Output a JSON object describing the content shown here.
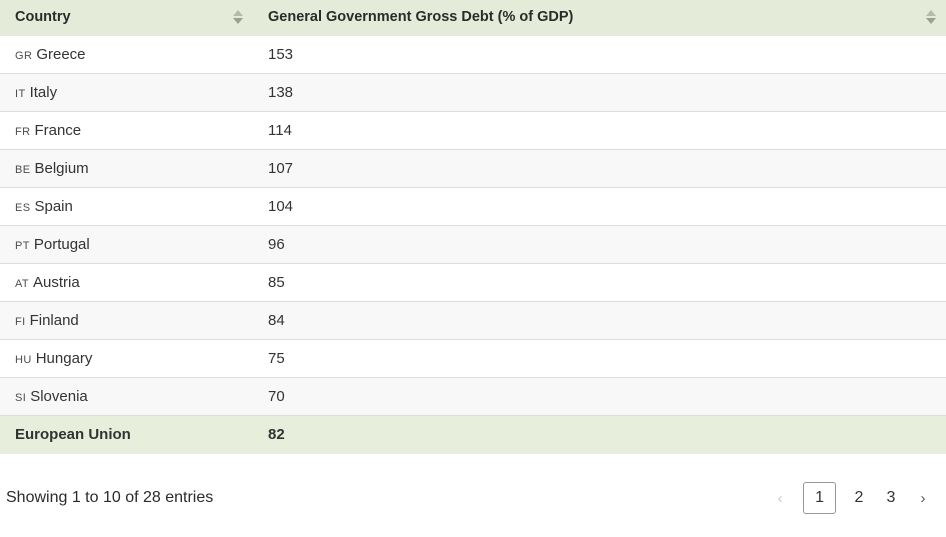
{
  "table": {
    "header": {
      "country_label": "Country",
      "value_label": "General Government Gross Debt (% of GDP)"
    },
    "rows": [
      {
        "code": "GR",
        "country": "Greece",
        "value": "153"
      },
      {
        "code": "IT",
        "country": "Italy",
        "value": "138"
      },
      {
        "code": "FR",
        "country": "France",
        "value": "114"
      },
      {
        "code": "BE",
        "country": "Belgium",
        "value": "107"
      },
      {
        "code": "ES",
        "country": "Spain",
        "value": "104"
      },
      {
        "code": "PT",
        "country": "Portugal",
        "value": "96"
      },
      {
        "code": "AT",
        "country": "Austria",
        "value": "85"
      },
      {
        "code": "FI",
        "country": "Finland",
        "value": "84"
      },
      {
        "code": "HU",
        "country": "Hungary",
        "value": "75"
      },
      {
        "code": "SI",
        "country": "Slovenia",
        "value": "70"
      }
    ],
    "summary_row": {
      "country": "European Union",
      "value": "82"
    }
  },
  "pagination": {
    "info": "Showing 1 to 10 of 28 entries",
    "previous": "‹",
    "next": "›",
    "pages": [
      "1",
      "2",
      "3"
    ],
    "current_page": "1"
  },
  "colors": {
    "header_bg": "#e4ebd8",
    "summary_bg": "#e7eedb",
    "stripe_bg": "#f8f8f8",
    "row_border": "#dddddd",
    "text": "#333333"
  },
  "icons": {
    "sort": "sort-arrows"
  },
  "chart_data": {
    "type": "table",
    "title": "General Government Gross Debt (% of GDP)",
    "columns": [
      "Country",
      "General Government Gross Debt (% of GDP)"
    ],
    "categories": [
      "Greece",
      "Italy",
      "France",
      "Belgium",
      "Spain",
      "Portugal",
      "Austria",
      "Finland",
      "Hungary",
      "Slovenia",
      "European Union"
    ],
    "values": [
      153,
      138,
      114,
      107,
      104,
      96,
      85,
      84,
      75,
      70,
      82
    ],
    "sort_order": "value descending",
    "entries_shown": "1 to 10 of 28",
    "pages_visible": [
      1,
      2,
      3
    ],
    "current_page": 1
  }
}
